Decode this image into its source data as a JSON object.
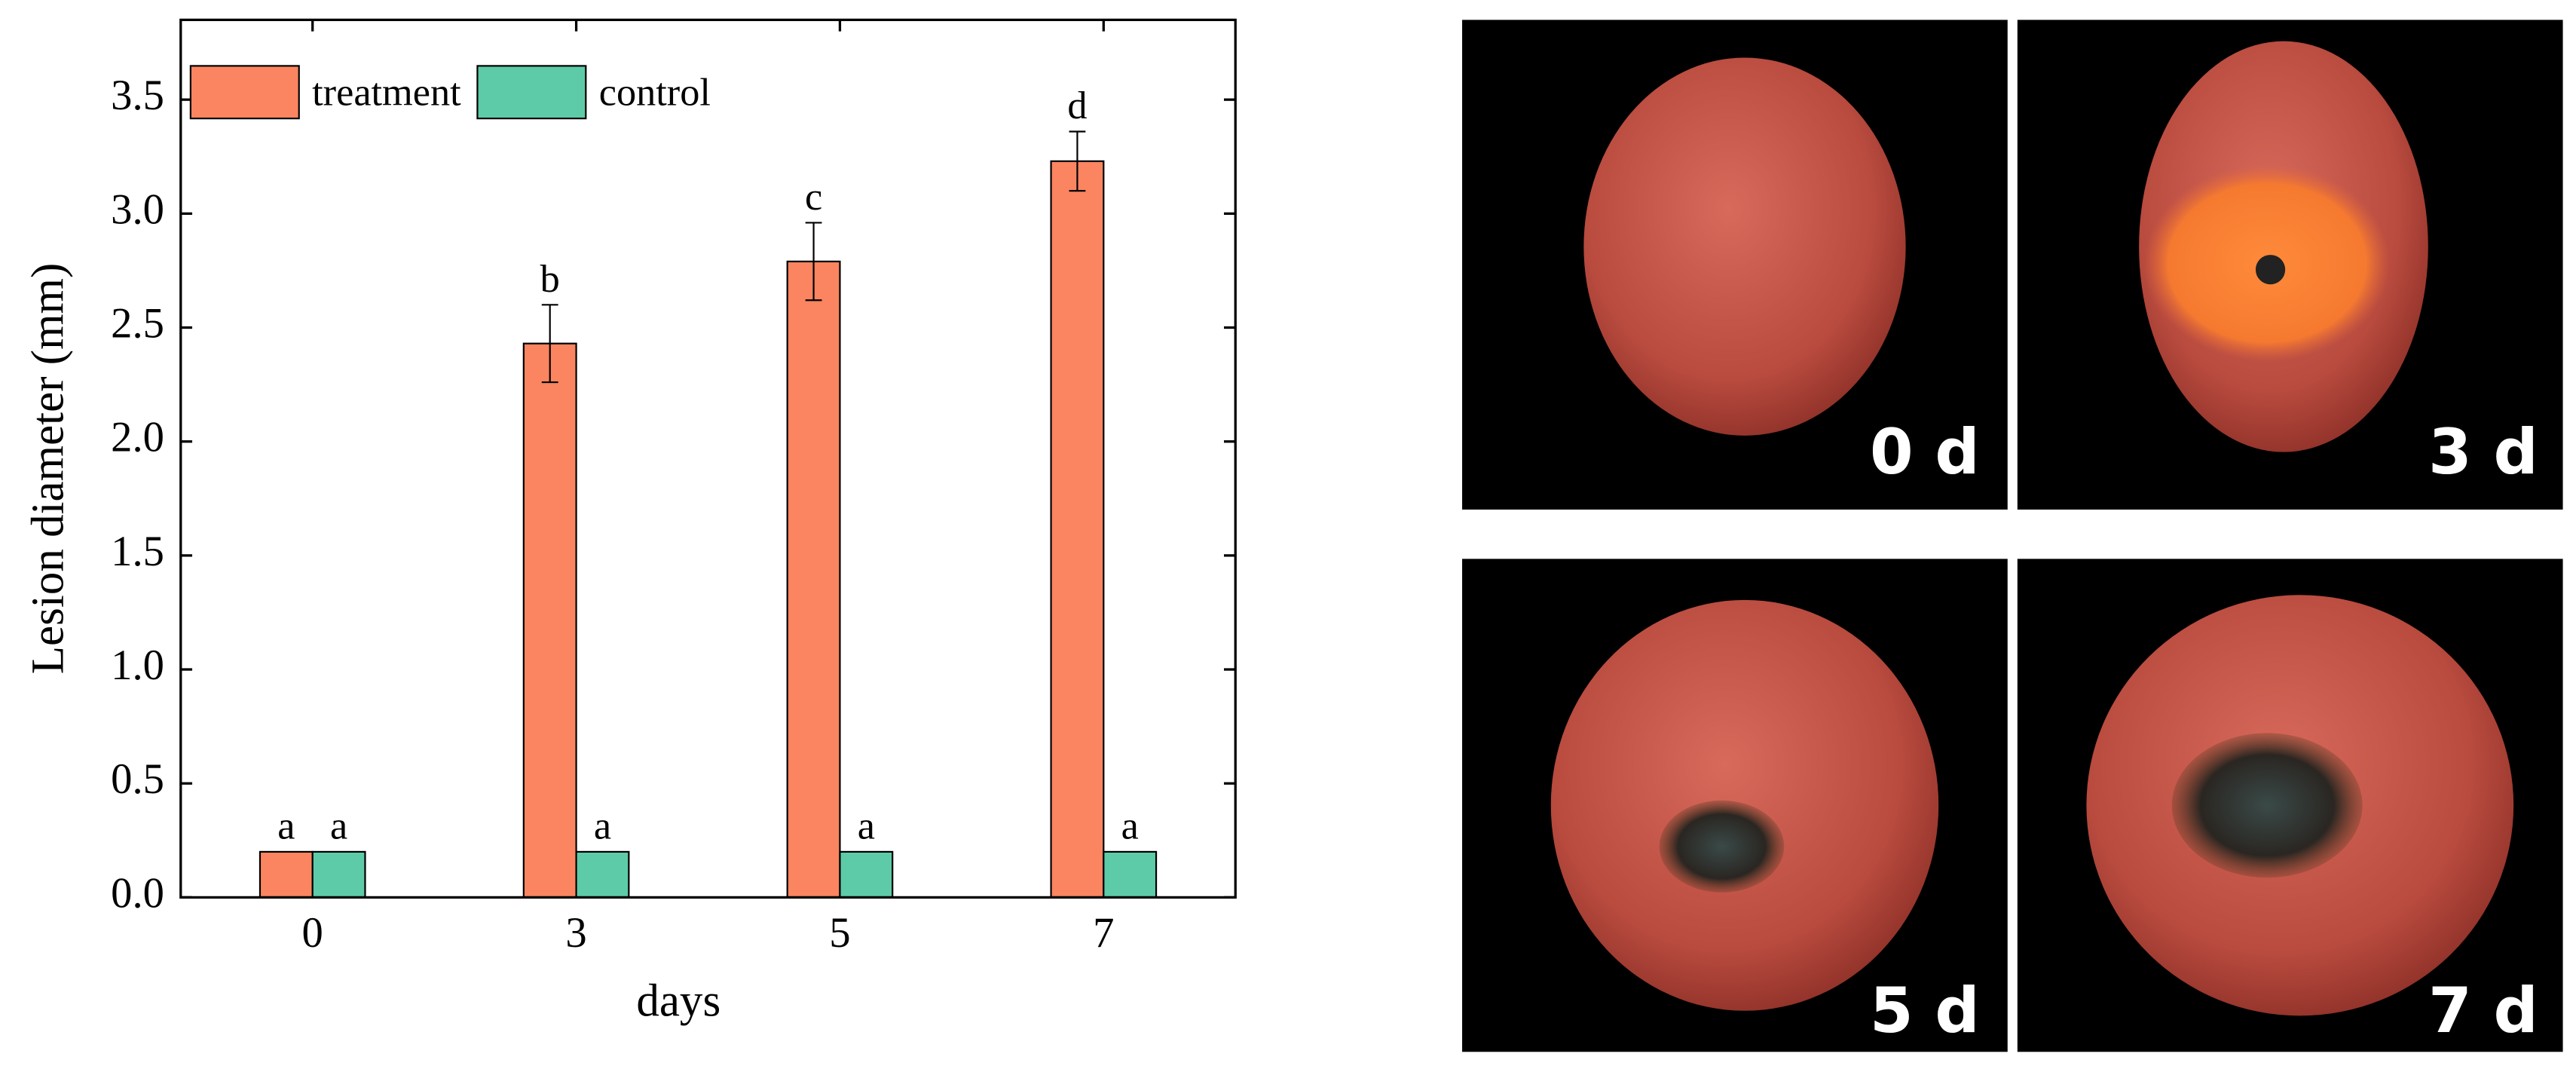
{
  "chart_data": {
    "type": "bar",
    "x_label": "days",
    "y_label": "Lesion diameter (mm)",
    "categories": [
      "0",
      "3",
      "5",
      "7"
    ],
    "series": [
      {
        "name": "treatment",
        "color": "#fa8560",
        "values": [
          0.2,
          2.43,
          2.79,
          3.23
        ],
        "errors": [
          null,
          0.17,
          0.17,
          0.13
        ],
        "significance": [
          "a",
          "b",
          "c",
          "d"
        ]
      },
      {
        "name": "control",
        "color": "#5ecba8",
        "values": [
          0.2,
          0.2,
          0.2,
          0.2
        ],
        "significance": [
          "a",
          "a",
          "a",
          "a"
        ]
      }
    ],
    "ylim": [
      0,
      3.85
    ],
    "yticks": [
      {
        "value": 0,
        "label": "0.0"
      },
      0.5,
      {
        "value": 1,
        "label": "1.0"
      },
      1.5,
      {
        "value": 2,
        "label": "2.0"
      },
      2.5,
      {
        "value": 3,
        "label": "3.0"
      },
      3.5
    ],
    "legend": "top-left",
    "grid": false
  },
  "panels": {
    "labels": [
      "0 d",
      "3 d",
      "5 d",
      "7 d"
    ]
  }
}
